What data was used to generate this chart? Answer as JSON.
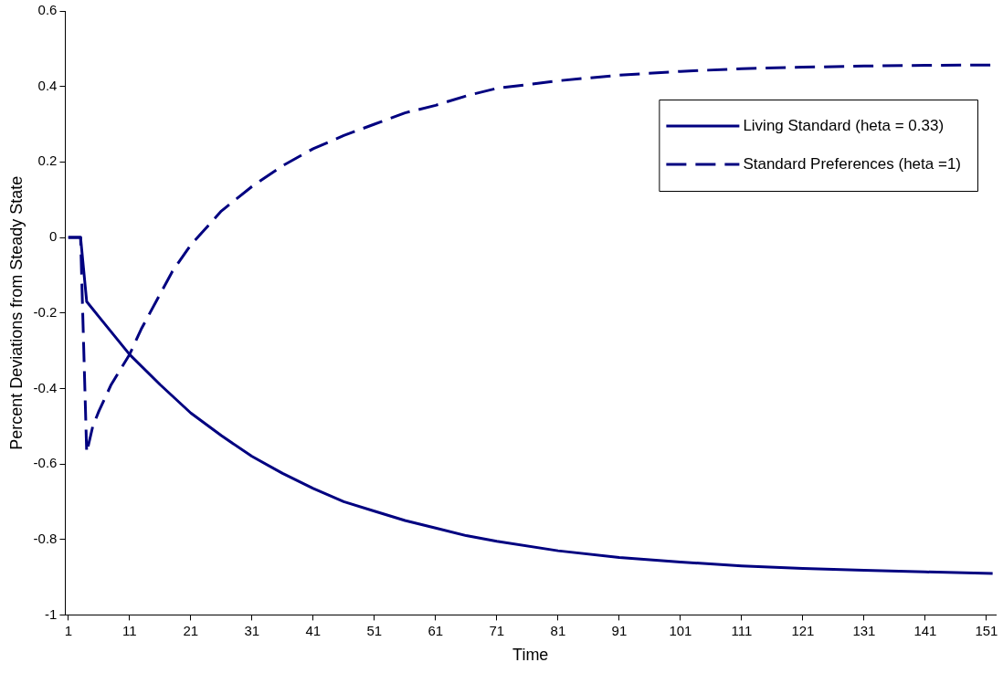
{
  "chart_data": {
    "type": "line",
    "xlabel": "Time",
    "ylabel": "Percent Deviations from Steady State",
    "xlim": [
      0.5,
      152.5
    ],
    "xticks": [
      1,
      11,
      21,
      31,
      41,
      51,
      61,
      71,
      81,
      91,
      101,
      111,
      121,
      131,
      141,
      151
    ],
    "ylim": [
      -1,
      0.6
    ],
    "yticks": [
      -1,
      -0.8,
      -0.6,
      -0.4,
      -0.2,
      0,
      0.2,
      0.4,
      0.6
    ],
    "grid": false,
    "legend": "top right",
    "marker": "none",
    "series": [
      {
        "name": "Living Standard (heta = 0.33)",
        "color": "#000080",
        "line_style": "solid",
        "x": [
          1,
          2,
          3,
          4,
          6,
          8,
          11,
          16,
          21,
          26,
          31,
          36,
          41,
          46,
          51,
          56,
          61,
          66,
          71,
          81,
          91,
          101,
          111,
          121,
          131,
          141,
          152
        ],
        "values": [
          0,
          0,
          0,
          -0.17,
          -0.21,
          -0.25,
          -0.31,
          -0.39,
          -0.465,
          -0.525,
          -0.58,
          -0.625,
          -0.665,
          -0.7,
          -0.725,
          -0.75,
          -0.77,
          -0.79,
          -0.805,
          -0.83,
          -0.848,
          -0.86,
          -0.87,
          -0.877,
          -0.882,
          -0.886,
          -0.89
        ]
      },
      {
        "name": "Standard Preferences (heta =1)",
        "color": "#000080",
        "line_style": "dashed",
        "x": [
          1,
          2,
          3,
          4,
          5,
          6,
          8,
          11,
          13,
          16,
          18,
          21,
          26,
          31,
          36,
          41,
          46,
          51,
          56,
          61,
          66,
          71,
          81,
          91,
          101,
          111,
          121,
          131,
          141,
          152
        ],
        "values": [
          0,
          0,
          0,
          -0.57,
          -0.5,
          -0.46,
          -0.39,
          -0.31,
          -0.24,
          -0.15,
          -0.09,
          -0.02,
          0.07,
          0.135,
          0.19,
          0.235,
          0.27,
          0.3,
          0.33,
          0.35,
          0.375,
          0.395,
          0.415,
          0.43,
          0.44,
          0.447,
          0.451,
          0.454,
          0.456,
          0.457
        ]
      }
    ]
  }
}
